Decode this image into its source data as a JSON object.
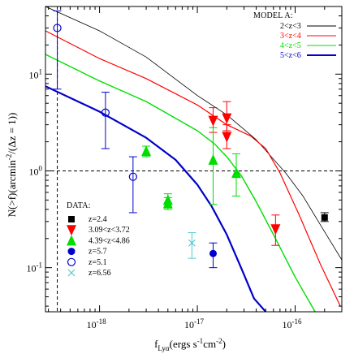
{
  "chart_data": {
    "type": "scatter",
    "xlabel": "f_Lyα(ergs s⁻¹cm⁻²)",
    "xlabel_parts": {
      "main": "f",
      "sub": "Lyα",
      "units": "(ergs s",
      "exp1": "-1",
      "mid": "cm",
      "exp2": "-2",
      "close": ")"
    },
    "ylabel": "N(>f)(arcmin⁻²/(Δz = 1))",
    "ylabel_parts": {
      "pre": "N(>f)(arcmin",
      "exp": "-2",
      "post": "/(Δz = 1))"
    },
    "x_scale": "log",
    "y_scale": "log",
    "xlim": [
      2.8e-19,
      3e-16
    ],
    "ylim": [
      0.035,
      50
    ],
    "x_ticks": [
      {
        "value": 1e-18,
        "base": "10",
        "exp": "-18"
      },
      {
        "value": 1e-17,
        "base": "10",
        "exp": "-17"
      },
      {
        "value": 1e-16,
        "base": "10",
        "exp": "-16"
      }
    ],
    "y_ticks": [
      {
        "value": 0.1,
        "label": "10",
        "exp": "-1"
      },
      {
        "value": 1,
        "label": "10",
        "exp": "0"
      },
      {
        "value": 10,
        "label": "10",
        "exp": "1"
      }
    ],
    "reference_lines": [
      {
        "orientation": "horizontal",
        "value": 1.0,
        "style": "dashed"
      },
      {
        "orientation": "vertical",
        "value": 3.7e-19,
        "style": "dashed"
      }
    ],
    "model_legend": {
      "title": "MODEL A:",
      "position": "top-right",
      "entries": [
        {
          "label": "2<z<3",
          "color": "#000000"
        },
        {
          "label": "3<z<4",
          "color": "#ff0000"
        },
        {
          "label": "4<z<5",
          "color": "#00dd00"
        },
        {
          "label": "5<z<6",
          "color": "#0000cc"
        }
      ]
    },
    "model_series": [
      {
        "color": "#000000",
        "width": 0.8,
        "x": [
          2.8e-19,
          1e-18,
          3e-18,
          1e-17,
          2e-17,
          4e-17,
          8e-17,
          1.2e-16,
          1.8e-16,
          3e-16
        ],
        "y": [
          50,
          28,
          15,
          6.0,
          3.8,
          2.1,
          0.95,
          0.55,
          0.28,
          0.12
        ]
      },
      {
        "color": "#ff0000",
        "width": 1.2,
        "x": [
          2.8e-19,
          1e-18,
          3e-18,
          1e-17,
          2e-17,
          3.5e-17,
          5e-17,
          7e-17,
          1.1e-16,
          1.8e-16,
          2.9e-16
        ],
        "y": [
          28,
          14.5,
          9.0,
          4.8,
          3.0,
          2.3,
          1.7,
          0.95,
          0.35,
          0.11,
          0.04
        ]
      },
      {
        "color": "#00dd00",
        "width": 1.4,
        "x": [
          2.8e-19,
          1e-18,
          3e-18,
          1e-17,
          1.5e-17,
          2e-17,
          2.8e-17,
          4e-17,
          6e-17,
          1e-16,
          1.6e-16
        ],
        "y": [
          16,
          8.5,
          5.2,
          2.6,
          1.9,
          1.4,
          0.9,
          0.48,
          0.22,
          0.08,
          0.035
        ]
      },
      {
        "color": "#0000cc",
        "width": 2.2,
        "x": [
          2.8e-19,
          1e-18,
          3e-18,
          6e-18,
          1e-17,
          1.4e-17,
          2e-17,
          2.8e-17,
          3.8e-17,
          5e-17
        ],
        "y": [
          7.5,
          4.1,
          2.2,
          1.3,
          0.72,
          0.43,
          0.22,
          0.1,
          0.048,
          0.035
        ]
      }
    ],
    "data_legend": {
      "title": "DATA:",
      "position": "bottom-left",
      "entries": [
        {
          "label": "z=2.4",
          "marker": "filled-square",
          "color": "#000000"
        },
        {
          "label": "3.09<z<3.72",
          "marker": "filled-triangle-down",
          "color": "#ff0000"
        },
        {
          "label": "4.39<z<4.86",
          "marker": "filled-triangle-up",
          "color": "#00dd00"
        },
        {
          "label": "z=5.7",
          "marker": "filled-circle",
          "color": "#0000cc"
        },
        {
          "label": "z=5.1",
          "marker": "open-circle",
          "color": "#0000cc"
        },
        {
          "label": "z=6.56",
          "marker": "cross",
          "color": "#55cccc"
        }
      ]
    },
    "data_points": [
      {
        "set": "z=2.4",
        "x": 2e-16,
        "y": 0.33,
        "yerr": [
          0.3,
          0.37
        ]
      },
      {
        "set": "3.09<z<3.72",
        "x": 1.45e-17,
        "y": 3.3,
        "yerr": [
          2.5,
          4.5
        ]
      },
      {
        "set": "3.09<z<3.72",
        "x": 2e-17,
        "y": 3.5,
        "yerr": [
          2.6,
          5.2
        ]
      },
      {
        "set": "3.09<z<3.72",
        "x": 2e-17,
        "y": 2.25,
        "yerr": [
          1.7,
          3.0
        ]
      },
      {
        "set": "3.09<z<3.72",
        "x": 6.3e-17,
        "y": 0.25,
        "yerr": [
          0.17,
          0.35
        ]
      },
      {
        "set": "4.39<z<4.86",
        "x": 3e-18,
        "y": 1.6,
        "yerr": [
          1.4,
          1.8
        ]
      },
      {
        "set": "4.39<z<4.86",
        "x": 5e-18,
        "y": 0.5,
        "yerr": [
          0.43,
          0.58
        ]
      },
      {
        "set": "4.39<z<4.86",
        "x": 5e-18,
        "y": 0.46,
        "yerr": [
          0.4,
          0.53
        ]
      },
      {
        "set": "4.39<z<4.86",
        "x": 1.45e-17,
        "y": 1.3,
        "yerr": [
          0.45,
          2.8
        ]
      },
      {
        "set": "4.39<z<4.86",
        "x": 2.5e-17,
        "y": 0.95,
        "yerr": [
          0.55,
          1.5
        ]
      },
      {
        "set": "z=5.7",
        "x": 1.45e-17,
        "y": 0.14,
        "yerr": [
          0.1,
          0.18
        ]
      },
      {
        "set": "z=5.1",
        "x": 3.7e-19,
        "y": 30,
        "yerr": [
          7,
          45
        ]
      },
      {
        "set": "z=5.1",
        "x": 1.15e-18,
        "y": 4.0,
        "yerr": [
          1.7,
          6.5
        ]
      },
      {
        "set": "z=5.1",
        "x": 2.2e-18,
        "y": 0.87,
        "yerr": [
          0.37,
          1.4
        ]
      },
      {
        "set": "z=6.56",
        "x": 8.8e-18,
        "y": 0.18,
        "yerr": [
          0.125,
          0.23
        ]
      }
    ]
  }
}
